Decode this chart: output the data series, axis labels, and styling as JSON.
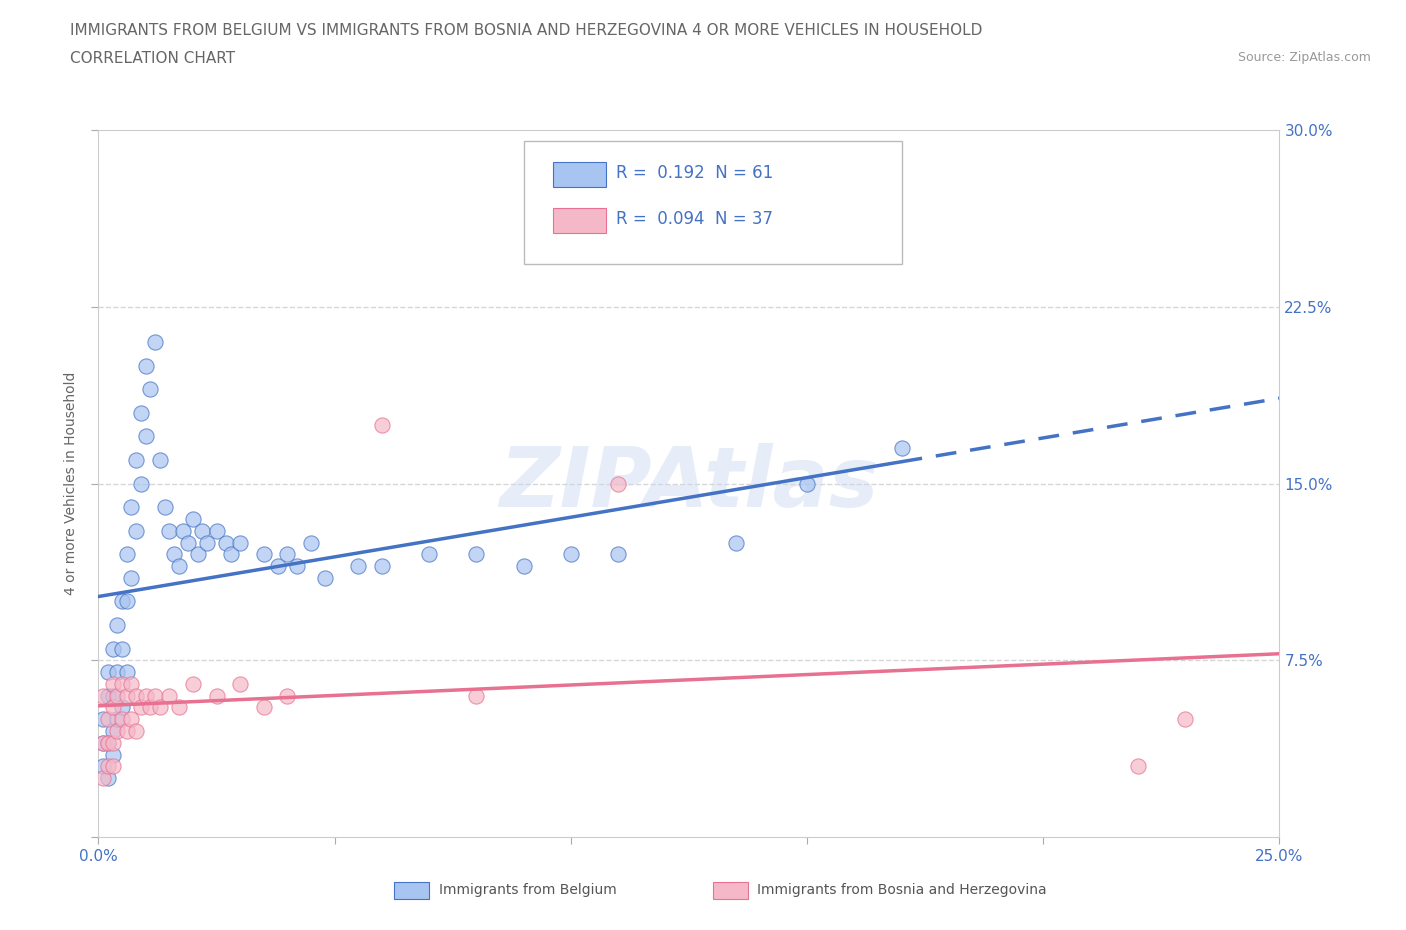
{
  "title_line1": "IMMIGRANTS FROM BELGIUM VS IMMIGRANTS FROM BOSNIA AND HERZEGOVINA 4 OR MORE VEHICLES IN HOUSEHOLD",
  "title_line2": "CORRELATION CHART",
  "source_text": "Source: ZipAtlas.com",
  "ylabel": "4 or more Vehicles in Household",
  "xlim": [
    0.0,
    0.25
  ],
  "ylim": [
    0.0,
    0.3
  ],
  "watermark": "ZIPAtlas",
  "color_belgium": "#a8c4f0",
  "color_bosnia": "#f5b8c8",
  "color_belgium_line": "#4472c4",
  "color_bosnia_line": "#e87090",
  "background_color": "#ffffff",
  "grid_color": "#cccccc",
  "belgium_x": [
    0.001,
    0.001,
    0.001,
    0.002,
    0.002,
    0.002,
    0.002,
    0.003,
    0.003,
    0.003,
    0.003,
    0.004,
    0.004,
    0.004,
    0.005,
    0.005,
    0.005,
    0.006,
    0.006,
    0.006,
    0.007,
    0.007,
    0.008,
    0.008,
    0.009,
    0.009,
    0.01,
    0.01,
    0.011,
    0.012,
    0.013,
    0.014,
    0.015,
    0.016,
    0.017,
    0.018,
    0.019,
    0.02,
    0.021,
    0.022,
    0.023,
    0.025,
    0.027,
    0.028,
    0.03,
    0.035,
    0.038,
    0.04,
    0.042,
    0.045,
    0.048,
    0.055,
    0.06,
    0.07,
    0.08,
    0.09,
    0.1,
    0.11,
    0.135,
    0.15,
    0.17
  ],
  "belgium_y": [
    0.05,
    0.04,
    0.03,
    0.06,
    0.07,
    0.04,
    0.025,
    0.08,
    0.06,
    0.045,
    0.035,
    0.09,
    0.07,
    0.05,
    0.1,
    0.08,
    0.055,
    0.12,
    0.1,
    0.07,
    0.14,
    0.11,
    0.16,
    0.13,
    0.18,
    0.15,
    0.2,
    0.17,
    0.19,
    0.21,
    0.16,
    0.14,
    0.13,
    0.12,
    0.115,
    0.13,
    0.125,
    0.135,
    0.12,
    0.13,
    0.125,
    0.13,
    0.125,
    0.12,
    0.125,
    0.12,
    0.115,
    0.12,
    0.115,
    0.125,
    0.11,
    0.115,
    0.115,
    0.12,
    0.12,
    0.115,
    0.12,
    0.12,
    0.125,
    0.15,
    0.165
  ],
  "bosnia_x": [
    0.001,
    0.001,
    0.001,
    0.002,
    0.002,
    0.002,
    0.003,
    0.003,
    0.003,
    0.003,
    0.004,
    0.004,
    0.005,
    0.005,
    0.006,
    0.006,
    0.007,
    0.007,
    0.008,
    0.008,
    0.009,
    0.01,
    0.011,
    0.012,
    0.013,
    0.015,
    0.017,
    0.02,
    0.025,
    0.03,
    0.035,
    0.04,
    0.06,
    0.08,
    0.11,
    0.22,
    0.23
  ],
  "bosnia_y": [
    0.06,
    0.04,
    0.025,
    0.05,
    0.04,
    0.03,
    0.065,
    0.055,
    0.04,
    0.03,
    0.06,
    0.045,
    0.065,
    0.05,
    0.06,
    0.045,
    0.065,
    0.05,
    0.06,
    0.045,
    0.055,
    0.06,
    0.055,
    0.06,
    0.055,
    0.06,
    0.055,
    0.065,
    0.06,
    0.065,
    0.055,
    0.06,
    0.175,
    0.06,
    0.15,
    0.03,
    0.05
  ],
  "tick_color": "#4472c4",
  "tick_fontsize": 11,
  "title_fontsize": 11,
  "source_fontsize": 9,
  "ylabel_fontsize": 10,
  "legend_text_color": "#4472c4"
}
